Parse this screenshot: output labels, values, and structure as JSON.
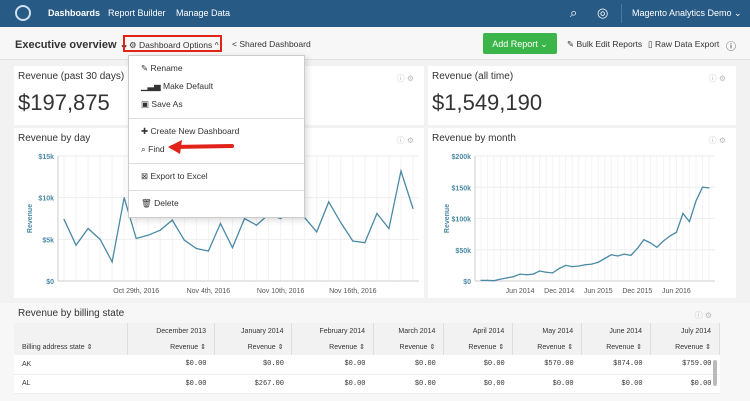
{
  "nav": {
    "items": [
      "Dashboards",
      "Report Builder",
      "Manage Data"
    ],
    "account": "Magento Analytics Demo ⌄"
  },
  "toolbar": {
    "title": "Executive overview ⌄",
    "options": "⚙ Dashboard Options ^",
    "shared": "Shared Dashboard",
    "add": "Add Report ⌄",
    "bulk": "Bulk Edit Reports",
    "raw": "Raw Data Export"
  },
  "menu": {
    "items": [
      "Rename",
      "Make Default",
      "Save As",
      "Create New Dashboard",
      "Find",
      "Export to Excel",
      "Delete"
    ]
  },
  "cards": {
    "rev30": {
      "title": "Revenue (past 30 days)",
      "value": "$197,875"
    },
    "revall": {
      "title": "Revenue (all time)",
      "value": "$1,549,190"
    },
    "day": {
      "title": "Revenue by day"
    },
    "month": {
      "title": "Revenue by month"
    },
    "table": {
      "title": "Revenue by billing state"
    }
  },
  "colors": {
    "nav": "#275a85",
    "accent": "#3bb54a",
    "line": "#4a8aa5",
    "highlight": "#e2231a"
  },
  "chart_data": [
    {
      "type": "line",
      "title": "Revenue by day",
      "ylabel": "Revenue",
      "ylim": [
        0,
        15000
      ],
      "yticks": [
        "$0",
        "$5k",
        "$10k",
        "$15k"
      ],
      "xticks": [
        "Oct 29th, 2016",
        "Nov 4th, 2016",
        "Nov 10th, 2016",
        "Nov 16th, 2016"
      ],
      "x_start": "Oct 23rd, 2016",
      "values": [
        7400,
        4300,
        6300,
        5000,
        2300,
        10000,
        5100,
        5500,
        6100,
        7300,
        4900,
        3900,
        3600,
        6900,
        4000,
        7500,
        6700,
        8000,
        7500,
        8500,
        7600,
        5900,
        9500,
        7000,
        4800,
        4600,
        8100,
        6300,
        13200,
        8700
      ]
    },
    {
      "type": "line",
      "title": "Revenue by month",
      "ylabel": "Revenue",
      "ylim": [
        0,
        200000
      ],
      "yticks": [
        "$0",
        "$50k",
        "$100k",
        "$150k",
        "$200k"
      ],
      "xticks": [
        "Jun 2014",
        "Dec 2014",
        "Jun 2015",
        "Dec 2015",
        "Jun 2016"
      ],
      "x_start": "Dec 2013",
      "values": [
        1000,
        1000,
        500,
        3000,
        5000,
        7000,
        11000,
        10000,
        11000,
        16000,
        14000,
        13000,
        20000,
        25000,
        23000,
        24000,
        26000,
        27000,
        30000,
        36000,
        42000,
        40000,
        43000,
        41000,
        52000,
        66000,
        61000,
        54000,
        64000,
        72000,
        78000,
        108000,
        95000,
        128000,
        150000,
        149000
      ]
    }
  ],
  "table": {
    "columns": [
      "Billing address state",
      "December 2013",
      "January 2014",
      "February 2014",
      "March 2014",
      "April 2014",
      "May 2014",
      "June 2014",
      "July 2014"
    ],
    "sub": "Revenue",
    "rows": [
      [
        "AK",
        "$0.00",
        "$0.00",
        "$0.00",
        "$0.00",
        "$0.00",
        "$570.00",
        "$874.00",
        "$759.00"
      ],
      [
        "AL",
        "$0.00",
        "$267.00",
        "$0.00",
        "$0.00",
        "$0.00",
        "$0.00",
        "$0.00",
        "$0.00"
      ]
    ]
  }
}
